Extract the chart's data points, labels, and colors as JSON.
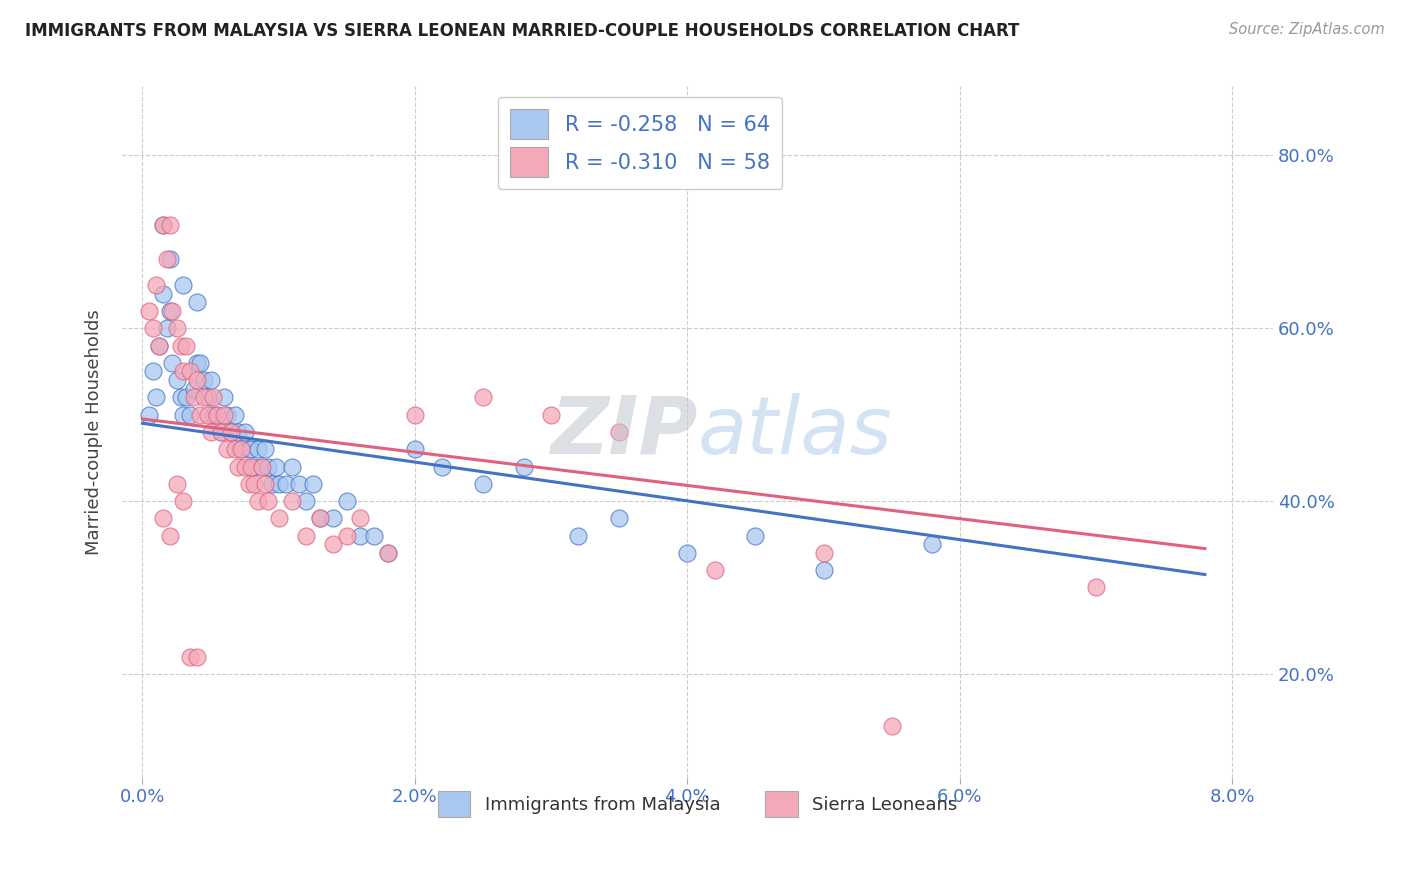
{
  "title": "IMMIGRANTS FROM MALAYSIA VS SIERRA LEONEAN MARRIED-COUPLE HOUSEHOLDS CORRELATION CHART",
  "source": "Source: ZipAtlas.com",
  "ylabel": "Married-couple Households",
  "legend_label1": "R = -0.258   N = 64",
  "legend_label2": "R = -0.310   N = 58",
  "legend_bottom_label1": "Immigrants from Malaysia",
  "legend_bottom_label2": "Sierra Leoneans",
  "color_blue": "#a8c8f0",
  "color_pink": "#f4a8b8",
  "color_blue_line": "#4472c4",
  "color_pink_line": "#e06080",
  "watermark_zip": "ZIP",
  "watermark_atlas": "atlas",
  "blue_x": [
    0.05,
    0.08,
    0.1,
    0.12,
    0.15,
    0.18,
    0.2,
    0.22,
    0.25,
    0.28,
    0.3,
    0.32,
    0.35,
    0.38,
    0.4,
    0.42,
    0.45,
    0.48,
    0.5,
    0.52,
    0.55,
    0.58,
    0.6,
    0.62,
    0.65,
    0.68,
    0.7,
    0.72,
    0.75,
    0.78,
    0.8,
    0.82,
    0.85,
    0.88,
    0.9,
    0.92,
    0.95,
    0.98,
    1.0,
    1.05,
    1.1,
    1.15,
    1.2,
    1.25,
    1.3,
    1.4,
    1.5,
    1.6,
    1.7,
    1.8,
    2.0,
    2.2,
    2.5,
    2.8,
    3.2,
    3.5,
    4.0,
    4.5,
    5.0,
    5.8,
    0.15,
    0.2,
    0.3,
    0.4
  ],
  "blue_y": [
    50,
    55,
    52,
    58,
    64,
    60,
    62,
    56,
    54,
    52,
    50,
    52,
    50,
    53,
    56,
    56,
    54,
    52,
    54,
    50,
    50,
    48,
    52,
    50,
    48,
    50,
    48,
    46,
    48,
    46,
    46,
    44,
    46,
    44,
    46,
    44,
    42,
    44,
    42,
    42,
    44,
    42,
    40,
    42,
    38,
    38,
    40,
    36,
    36,
    34,
    46,
    44,
    42,
    44,
    36,
    38,
    34,
    36,
    32,
    35,
    72,
    68,
    65,
    63
  ],
  "pink_x": [
    0.05,
    0.08,
    0.1,
    0.12,
    0.15,
    0.18,
    0.2,
    0.22,
    0.25,
    0.28,
    0.3,
    0.32,
    0.35,
    0.38,
    0.4,
    0.42,
    0.45,
    0.48,
    0.5,
    0.52,
    0.55,
    0.58,
    0.6,
    0.62,
    0.65,
    0.68,
    0.7,
    0.72,
    0.75,
    0.78,
    0.8,
    0.82,
    0.85,
    0.88,
    0.9,
    0.92,
    1.0,
    1.1,
    1.2,
    1.3,
    1.4,
    1.5,
    1.6,
    1.8,
    2.0,
    2.5,
    3.0,
    3.5,
    4.2,
    5.0,
    0.15,
    0.2,
    0.25,
    0.3,
    0.35,
    0.4,
    5.5,
    7.0
  ],
  "pink_y": [
    62,
    60,
    65,
    58,
    72,
    68,
    72,
    62,
    60,
    58,
    55,
    58,
    55,
    52,
    54,
    50,
    52,
    50,
    48,
    52,
    50,
    48,
    50,
    46,
    48,
    46,
    44,
    46,
    44,
    42,
    44,
    42,
    40,
    44,
    42,
    40,
    38,
    40,
    36,
    38,
    35,
    36,
    38,
    34,
    50,
    52,
    50,
    48,
    32,
    34,
    38,
    36,
    42,
    40,
    22,
    22,
    14,
    30
  ],
  "reg_blue_x0": 0.0,
  "reg_blue_y0": 49.0,
  "reg_blue_x1": 7.8,
  "reg_blue_y1": 31.5,
  "reg_pink_x0": 0.0,
  "reg_pink_y0": 49.5,
  "reg_pink_x1": 7.8,
  "reg_pink_y1": 34.5,
  "xlim_min": -0.15,
  "xlim_max": 8.3,
  "ylim_min": 8.0,
  "ylim_max": 88.0,
  "xticks": [
    0,
    2,
    4,
    6,
    8
  ],
  "yticks": [
    20,
    40,
    60,
    80
  ]
}
